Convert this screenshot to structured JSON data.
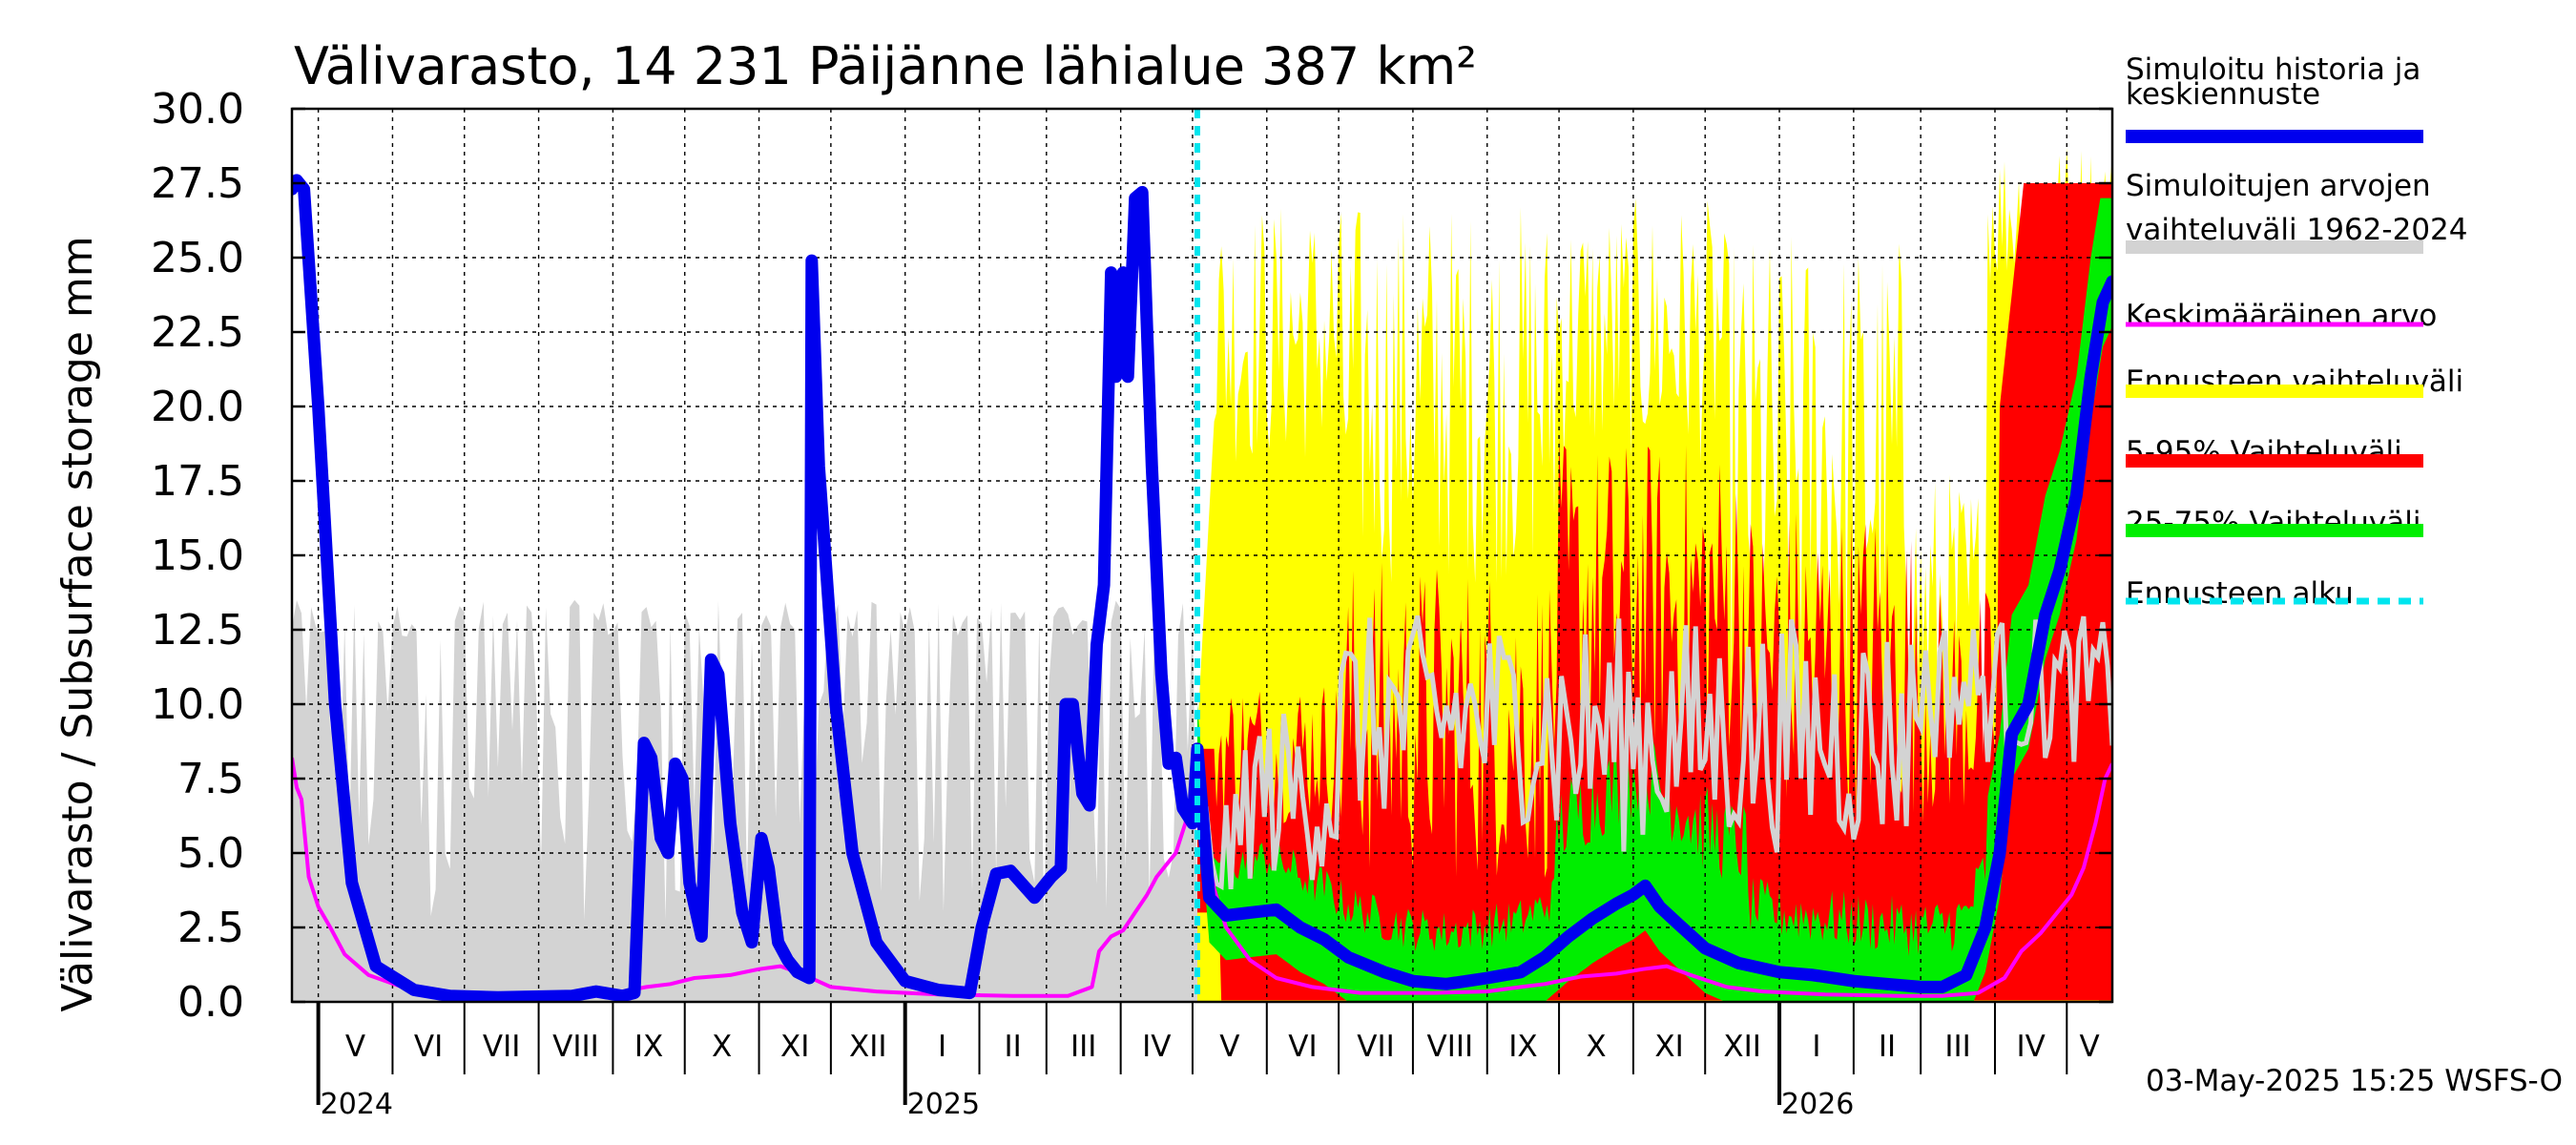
{
  "chart_data": {
    "type": "area",
    "title": "Välivarasto, 14 231 Päijänne lähialue 387 km²",
    "ylabel": "Välivarasto / Subsurface storage  mm",
    "xlabel": "",
    "ylim": [
      0,
      30
    ],
    "y_ticks": [
      "0.0",
      "2.5",
      "5.0",
      "7.5",
      "10.0",
      "12.5",
      "15.0",
      "17.5",
      "20.0",
      "22.5",
      "25.0",
      "27.5",
      "30.0"
    ],
    "x_range": [
      "2024-04-20",
      "2026-05-20"
    ],
    "forecast_start": "2025-05-03",
    "months": [
      {
        "label": "V",
        "start": "2024-05-01"
      },
      {
        "label": "VI",
        "start": "2024-06-01"
      },
      {
        "label": "VII",
        "start": "2024-07-01"
      },
      {
        "label": "VIII",
        "start": "2024-08-01"
      },
      {
        "label": "IX",
        "start": "2024-09-01"
      },
      {
        "label": "X",
        "start": "2024-10-01"
      },
      {
        "label": "XI",
        "start": "2024-11-01"
      },
      {
        "label": "XII",
        "start": "2024-12-01"
      },
      {
        "label": "I",
        "start": "2025-01-01"
      },
      {
        "label": "II",
        "start": "2025-02-01"
      },
      {
        "label": "III",
        "start": "2025-03-01"
      },
      {
        "label": "IV",
        "start": "2025-04-01"
      },
      {
        "label": "V",
        "start": "2025-05-01"
      },
      {
        "label": "VI",
        "start": "2025-06-01"
      },
      {
        "label": "VII",
        "start": "2025-07-01"
      },
      {
        "label": "VIII",
        "start": "2025-08-01"
      },
      {
        "label": "IX",
        "start": "2025-09-01"
      },
      {
        "label": "X",
        "start": "2025-10-01"
      },
      {
        "label": "XI",
        "start": "2025-11-01"
      },
      {
        "label": "XII",
        "start": "2025-12-01"
      },
      {
        "label": "I",
        "start": "2026-01-01"
      },
      {
        "label": "II",
        "start": "2026-02-01"
      },
      {
        "label": "III",
        "start": "2026-03-01"
      },
      {
        "label": "IV",
        "start": "2026-04-01"
      },
      {
        "label": "V",
        "start": "2026-05-01"
      }
    ],
    "years": [
      {
        "label": "2024",
        "date": "2024-05-01"
      },
      {
        "label": "2025",
        "date": "2025-01-01"
      },
      {
        "label": "2026",
        "date": "2026-01-01"
      }
    ],
    "colors": {
      "history": "#0000ee",
      "range_hist": "#d3d3d3",
      "mean": "#ff00ff",
      "fc_range": "#ffff00",
      "p5_95": "#ff0000",
      "p25_75": "#00ee00",
      "forecast_start": "#00e5ee"
    },
    "series": [
      {
        "name": "Simuloitu historia ja keskiennuste",
        "type": "line",
        "color": "#0000ee",
        "points": [
          [
            "2024-04-20",
            27.3
          ],
          [
            "2024-04-22",
            27.6
          ],
          [
            "2024-04-25",
            27.3
          ],
          [
            "2024-05-01",
            20
          ],
          [
            "2024-05-08",
            10
          ],
          [
            "2024-05-15",
            4
          ],
          [
            "2024-05-25",
            1.2
          ],
          [
            "2024-06-10",
            0.4
          ],
          [
            "2024-06-25",
            0.2
          ],
          [
            "2024-07-15",
            0.15
          ],
          [
            "2024-08-15",
            0.2
          ],
          [
            "2024-08-25",
            0.35
          ],
          [
            "2024-09-05",
            0.2
          ],
          [
            "2024-09-10",
            0.3
          ],
          [
            "2024-09-14",
            8.7
          ],
          [
            "2024-09-17",
            8.2
          ],
          [
            "2024-09-21",
            5.5
          ],
          [
            "2024-09-24",
            5.0
          ],
          [
            "2024-09-27",
            8.0
          ],
          [
            "2024-09-30",
            7.5
          ],
          [
            "2024-10-03",
            4.0
          ],
          [
            "2024-10-08",
            2.2
          ],
          [
            "2024-10-12",
            11.5
          ],
          [
            "2024-10-15",
            11.0
          ],
          [
            "2024-10-20",
            6.0
          ],
          [
            "2024-10-25",
            3.0
          ],
          [
            "2024-10-29",
            2.0
          ],
          [
            "2024-11-02",
            5.5
          ],
          [
            "2024-11-05",
            4.5
          ],
          [
            "2024-11-09",
            2.0
          ],
          [
            "2024-11-13",
            1.4
          ],
          [
            "2024-11-17",
            1.0
          ],
          [
            "2024-11-22",
            0.8
          ],
          [
            "2024-11-23",
            24.9
          ],
          [
            "2024-11-26",
            18
          ],
          [
            "2024-12-03",
            10
          ],
          [
            "2024-12-10",
            5
          ],
          [
            "2024-12-20",
            2
          ],
          [
            "2025-01-01",
            0.7
          ],
          [
            "2025-01-15",
            0.4
          ],
          [
            "2025-01-28",
            0.3
          ],
          [
            "2025-02-02",
            2.5
          ],
          [
            "2025-02-08",
            4.3
          ],
          [
            "2025-02-14",
            4.4
          ],
          [
            "2025-02-24",
            3.5
          ],
          [
            "2025-03-03",
            4.2
          ],
          [
            "2025-03-07",
            4.5
          ],
          [
            "2025-03-09",
            10
          ],
          [
            "2025-03-12",
            10
          ],
          [
            "2025-03-16",
            7
          ],
          [
            "2025-03-19",
            6.6
          ],
          [
            "2025-03-22",
            12
          ],
          [
            "2025-03-25",
            14
          ],
          [
            "2025-03-28",
            24.5
          ],
          [
            "2025-03-30",
            21
          ],
          [
            "2025-04-02",
            24.5
          ],
          [
            "2025-04-04",
            21
          ],
          [
            "2025-04-07",
            27.0
          ],
          [
            "2025-04-10",
            27.2
          ],
          [
            "2025-04-14",
            18
          ],
          [
            "2025-04-18",
            11
          ],
          [
            "2025-04-21",
            8
          ],
          [
            "2025-04-24",
            8.2
          ],
          [
            "2025-04-27",
            6.5
          ],
          [
            "2025-05-01",
            6.0
          ],
          [
            "2025-05-03",
            8.5
          ],
          [
            "2025-05-08",
            3.5
          ],
          [
            "2025-05-15",
            2.9
          ],
          [
            "2025-05-25",
            3.0
          ],
          [
            "2025-06-05",
            3.1
          ],
          [
            "2025-06-15",
            2.5
          ],
          [
            "2025-06-25",
            2.1
          ],
          [
            "2025-07-05",
            1.5
          ],
          [
            "2025-07-20",
            1.0
          ],
          [
            "2025-08-01",
            0.7
          ],
          [
            "2025-08-15",
            0.6
          ],
          [
            "2025-09-01",
            0.8
          ],
          [
            "2025-09-15",
            1.0
          ],
          [
            "2025-09-25",
            1.5
          ],
          [
            "2025-10-05",
            2.2
          ],
          [
            "2025-10-15",
            2.8
          ],
          [
            "2025-10-25",
            3.3
          ],
          [
            "2025-11-01",
            3.6
          ],
          [
            "2025-11-06",
            3.9
          ],
          [
            "2025-11-12",
            3.2
          ],
          [
            "2025-11-20",
            2.6
          ],
          [
            "2025-12-01",
            1.8
          ],
          [
            "2025-12-15",
            1.3
          ],
          [
            "2026-01-01",
            1.0
          ],
          [
            "2026-01-15",
            0.9
          ],
          [
            "2026-02-01",
            0.7
          ],
          [
            "2026-02-15",
            0.6
          ],
          [
            "2026-03-01",
            0.5
          ],
          [
            "2026-03-10",
            0.5
          ],
          [
            "2026-03-20",
            0.9
          ],
          [
            "2026-03-28",
            2.5
          ],
          [
            "2026-04-03",
            5.0
          ],
          [
            "2026-04-08",
            9.0
          ],
          [
            "2026-04-15",
            10.0
          ],
          [
            "2026-04-22",
            13.0
          ],
          [
            "2026-04-28",
            14.5
          ],
          [
            "2026-05-05",
            17.0
          ],
          [
            "2026-05-11",
            21.0
          ],
          [
            "2026-05-16",
            23.5
          ],
          [
            "2026-05-20",
            24.2
          ]
        ]
      },
      {
        "name": "Keskimääräinen arvo",
        "type": "line",
        "color": "#ff00ff",
        "points": [
          [
            "2024-04-20",
            8.2
          ],
          [
            "2024-04-22",
            7.2
          ],
          [
            "2024-04-24",
            6.8
          ],
          [
            "2024-04-27",
            4.2
          ],
          [
            "2024-05-01",
            3.2
          ],
          [
            "2024-05-06",
            2.5
          ],
          [
            "2024-05-12",
            1.6
          ],
          [
            "2024-05-22",
            0.9
          ],
          [
            "2024-06-05",
            0.5
          ],
          [
            "2024-06-25",
            0.3
          ],
          [
            "2024-07-20",
            0.25
          ],
          [
            "2024-08-20",
            0.3
          ],
          [
            "2024-09-05",
            0.35
          ],
          [
            "2024-09-15",
            0.5
          ],
          [
            "2024-09-25",
            0.6
          ],
          [
            "2024-10-05",
            0.8
          ],
          [
            "2024-10-20",
            0.9
          ],
          [
            "2024-11-01",
            1.1
          ],
          [
            "2024-11-10",
            1.2
          ],
          [
            "2024-11-20",
            0.9
          ],
          [
            "2024-12-01",
            0.5
          ],
          [
            "2024-12-20",
            0.35
          ],
          [
            "2025-01-15",
            0.25
          ],
          [
            "2025-02-15",
            0.2
          ],
          [
            "2025-03-10",
            0.2
          ],
          [
            "2025-03-20",
            0.5
          ],
          [
            "2025-03-23",
            1.7
          ],
          [
            "2025-03-28",
            2.2
          ],
          [
            "2025-04-02",
            2.4
          ],
          [
            "2025-04-07",
            3.0
          ],
          [
            "2025-04-12",
            3.6
          ],
          [
            "2025-04-16",
            4.2
          ],
          [
            "2025-04-20",
            4.6
          ],
          [
            "2025-04-24",
            5.0
          ],
          [
            "2025-04-28",
            6.0
          ],
          [
            "2025-05-01",
            7.2
          ],
          [
            "2025-05-03",
            7.8
          ],
          [
            "2025-05-06",
            5.5
          ],
          [
            "2025-05-10",
            3.8
          ],
          [
            "2025-05-15",
            2.5
          ],
          [
            "2025-05-25",
            1.4
          ],
          [
            "2025-06-05",
            0.8
          ],
          [
            "2025-06-20",
            0.5
          ],
          [
            "2025-07-10",
            0.3
          ],
          [
            "2025-08-10",
            0.3
          ],
          [
            "2025-09-01",
            0.35
          ],
          [
            "2025-09-15",
            0.5
          ],
          [
            "2025-09-25",
            0.6
          ],
          [
            "2025-10-10",
            0.85
          ],
          [
            "2025-10-25",
            0.95
          ],
          [
            "2025-11-05",
            1.1
          ],
          [
            "2025-11-15",
            1.2
          ],
          [
            "2025-11-25",
            0.9
          ],
          [
            "2025-12-10",
            0.5
          ],
          [
            "2025-12-25",
            0.35
          ],
          [
            "2026-01-20",
            0.25
          ],
          [
            "2026-02-20",
            0.2
          ],
          [
            "2026-03-10",
            0.2
          ],
          [
            "2026-03-25",
            0.3
          ],
          [
            "2026-04-05",
            0.8
          ],
          [
            "2026-04-12",
            1.7
          ],
          [
            "2026-04-20",
            2.3
          ],
          [
            "2026-04-27",
            3.0
          ],
          [
            "2026-05-03",
            3.6
          ],
          [
            "2026-05-08",
            4.5
          ],
          [
            "2026-05-13",
            6.0
          ],
          [
            "2026-05-17",
            7.5
          ],
          [
            "2026-05-20",
            8.0
          ]
        ]
      },
      {
        "name": "Simuloitujen arvojen vaihteluväli 1962-2024",
        "type": "band",
        "color": "#d3d3d3",
        "spans": [
          [
            "2024-04-20",
            "2025-05-03"
          ],
          [
            "2025-05-03",
            "2026-05-20"
          ]
        ],
        "upper_level": 13.5,
        "lower": 0
      }
    ],
    "legend": [
      {
        "label": "Simuloitu historia ja",
        "label2": "keskiennuste",
        "color": "#0000ee",
        "style": "thick"
      },
      {
        "label": "Simuloitujen arvojen",
        "label2": "vaihteluväli 1962-2024",
        "color": "#d3d3d3",
        "style": "thick"
      },
      {
        "label": "Keskimääräinen arvo",
        "label2": "",
        "color": "#ff00ff",
        "style": "thin"
      },
      {
        "label": "Ennusteen vaihteluväli",
        "label2": "",
        "color": "#ffff00",
        "style": "thick"
      },
      {
        "label": "5-95% Vaihteluväli",
        "label2": "",
        "color": "#ff0000",
        "style": "thick"
      },
      {
        "label": "25-75% Vaihteluväli",
        "label2": "",
        "color": "#00ee00",
        "style": "thick"
      },
      {
        "label": "Ennusteen alku",
        "label2": "",
        "color": "#00e5ee",
        "style": "dashed"
      }
    ],
    "legend_position": "right",
    "footer": "03-May-2025 15:25 WSFS-O"
  }
}
